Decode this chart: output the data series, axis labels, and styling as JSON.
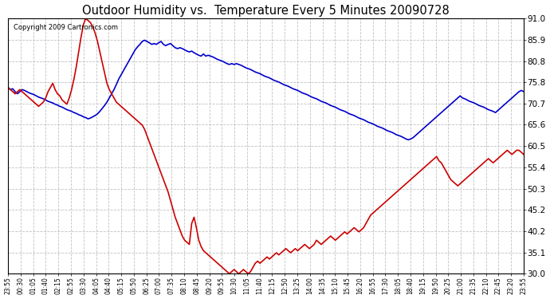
{
  "title": "Outdoor Humidity vs.  Temperature Every 5 Minutes 20090728",
  "copyright": "Copyright 2009 Cartronics.com",
  "background_color": "#ffffff",
  "plot_background": "#ffffff",
  "grid_color": "#bbbbbb",
  "y_min": 30.0,
  "y_max": 91.0,
  "y_ticks": [
    30.0,
    35.1,
    40.2,
    45.2,
    50.3,
    55.4,
    60.5,
    65.6,
    70.7,
    75.8,
    80.8,
    85.9,
    91.0
  ],
  "x_labels": [
    "23:55",
    "00:30",
    "01:05",
    "01:40",
    "02:15",
    "02:55",
    "03:30",
    "04:05",
    "04:40",
    "05:15",
    "05:50",
    "06:25",
    "07:00",
    "07:35",
    "08:10",
    "08:45",
    "09:20",
    "09:55",
    "10:30",
    "11:05",
    "11:40",
    "12:15",
    "12:50",
    "13:25",
    "14:00",
    "14:35",
    "15:10",
    "15:45",
    "16:20",
    "16:55",
    "17:30",
    "18:05",
    "18:40",
    "19:15",
    "19:50",
    "20:25",
    "21:00",
    "21:35",
    "22:10",
    "22:45",
    "23:20",
    "23:55"
  ],
  "humidity_color": "#0000cc",
  "temperature_color": "#cc0000",
  "humidity_data": [
    74.5,
    74.0,
    74.2,
    73.5,
    73.0,
    73.5,
    74.0,
    73.8,
    73.5,
    73.2,
    73.0,
    72.8,
    72.5,
    72.2,
    72.0,
    71.8,
    71.5,
    71.2,
    71.0,
    70.8,
    70.5,
    70.3,
    70.0,
    69.8,
    69.5,
    69.2,
    69.0,
    68.8,
    68.5,
    68.3,
    68.0,
    67.8,
    67.5,
    67.3,
    67.0,
    67.2,
    67.5,
    67.8,
    68.2,
    68.8,
    69.5,
    70.2,
    71.0,
    72.0,
    73.0,
    74.0,
    75.2,
    76.5,
    77.5,
    78.5,
    79.5,
    80.5,
    81.5,
    82.5,
    83.5,
    84.2,
    84.8,
    85.5,
    85.8,
    85.5,
    85.2,
    84.8,
    85.0,
    84.8,
    85.2,
    85.5,
    84.8,
    84.5,
    84.8,
    85.0,
    84.5,
    84.0,
    83.8,
    84.0,
    83.8,
    83.5,
    83.2,
    83.0,
    83.2,
    82.8,
    82.5,
    82.2,
    82.0,
    82.5,
    82.0,
    82.2,
    82.0,
    81.8,
    81.5,
    81.2,
    81.0,
    80.8,
    80.5,
    80.2,
    80.0,
    80.2,
    80.0,
    80.2,
    80.0,
    79.8,
    79.5,
    79.2,
    79.0,
    78.8,
    78.5,
    78.2,
    78.0,
    77.8,
    77.5,
    77.2,
    77.0,
    76.8,
    76.5,
    76.2,
    76.0,
    75.8,
    75.5,
    75.2,
    75.0,
    74.8,
    74.5,
    74.2,
    74.0,
    73.8,
    73.5,
    73.2,
    73.0,
    72.8,
    72.5,
    72.2,
    72.0,
    71.8,
    71.5,
    71.2,
    71.0,
    70.8,
    70.5,
    70.2,
    70.0,
    69.8,
    69.5,
    69.2,
    69.0,
    68.8,
    68.5,
    68.2,
    68.0,
    67.8,
    67.5,
    67.2,
    67.0,
    66.8,
    66.5,
    66.2,
    66.0,
    65.8,
    65.5,
    65.2,
    65.0,
    64.8,
    64.5,
    64.2,
    64.0,
    63.8,
    63.5,
    63.2,
    63.0,
    62.8,
    62.5,
    62.2,
    62.0,
    62.2,
    62.5,
    63.0,
    63.5,
    64.0,
    64.5,
    65.0,
    65.5,
    66.0,
    66.5,
    67.0,
    67.5,
    68.0,
    68.5,
    69.0,
    69.5,
    70.0,
    70.5,
    71.0,
    71.5,
    72.0,
    72.5,
    72.0,
    71.8,
    71.5,
    71.2,
    71.0,
    70.8,
    70.5,
    70.2,
    70.0,
    69.8,
    69.5,
    69.2,
    69.0,
    68.8,
    68.5,
    69.0,
    69.5,
    70.0,
    70.5,
    71.0,
    71.5,
    72.0,
    72.5,
    73.0,
    73.5,
    73.8,
    73.5
  ],
  "temperature_data": [
    74.5,
    74.0,
    73.5,
    73.0,
    73.5,
    74.0,
    73.5,
    73.0,
    72.5,
    72.0,
    71.5,
    71.0,
    70.5,
    70.0,
    70.5,
    71.0,
    72.0,
    73.5,
    74.5,
    75.5,
    74.0,
    73.0,
    72.5,
    71.5,
    71.0,
    70.5,
    72.0,
    74.0,
    76.5,
    79.5,
    83.0,
    86.5,
    89.5,
    91.0,
    90.5,
    90.0,
    89.0,
    87.5,
    85.5,
    83.0,
    80.5,
    78.0,
    75.5,
    74.0,
    73.0,
    72.0,
    71.0,
    70.5,
    70.0,
    69.5,
    69.0,
    68.5,
    68.0,
    67.5,
    67.0,
    66.5,
    66.0,
    65.5,
    64.5,
    63.0,
    61.5,
    60.0,
    58.5,
    57.0,
    55.5,
    54.0,
    52.5,
    51.0,
    49.5,
    47.5,
    45.5,
    43.5,
    42.0,
    40.5,
    39.0,
    38.0,
    37.5,
    37.0,
    42.0,
    43.5,
    41.0,
    38.0,
    36.5,
    35.5,
    35.0,
    34.5,
    34.0,
    33.5,
    33.0,
    32.5,
    32.0,
    31.5,
    31.0,
    30.5,
    30.0,
    30.5,
    31.0,
    30.5,
    30.0,
    30.5,
    31.0,
    30.5,
    30.0,
    30.5,
    31.5,
    32.5,
    33.0,
    32.5,
    33.0,
    33.5,
    34.0,
    33.5,
    34.0,
    34.5,
    35.0,
    34.5,
    35.0,
    35.5,
    36.0,
    35.5,
    35.0,
    35.5,
    36.0,
    35.5,
    36.0,
    36.5,
    37.0,
    36.5,
    36.0,
    36.5,
    37.0,
    38.0,
    37.5,
    37.0,
    37.5,
    38.0,
    38.5,
    39.0,
    38.5,
    38.0,
    38.5,
    39.0,
    39.5,
    40.0,
    39.5,
    40.0,
    40.5,
    41.0,
    40.5,
    40.0,
    40.5,
    41.0,
    42.0,
    43.0,
    44.0,
    44.5,
    45.0,
    45.5,
    46.0,
    46.5,
    47.0,
    47.5,
    48.0,
    48.5,
    49.0,
    49.5,
    50.0,
    50.5,
    51.0,
    51.5,
    52.0,
    52.5,
    53.0,
    53.5,
    54.0,
    54.5,
    55.0,
    55.5,
    56.0,
    56.5,
    57.0,
    57.5,
    58.0,
    57.0,
    56.5,
    55.5,
    54.5,
    53.5,
    52.5,
    52.0,
    51.5,
    51.0,
    51.5,
    52.0,
    52.5,
    53.0,
    53.5,
    54.0,
    54.5,
    55.0,
    55.5,
    56.0,
    56.5,
    57.0,
    57.5,
    57.0,
    56.5,
    57.0,
    57.5,
    58.0,
    58.5,
    59.0,
    59.5,
    59.0,
    58.5,
    59.0,
    59.5,
    59.5,
    59.0,
    58.5
  ]
}
